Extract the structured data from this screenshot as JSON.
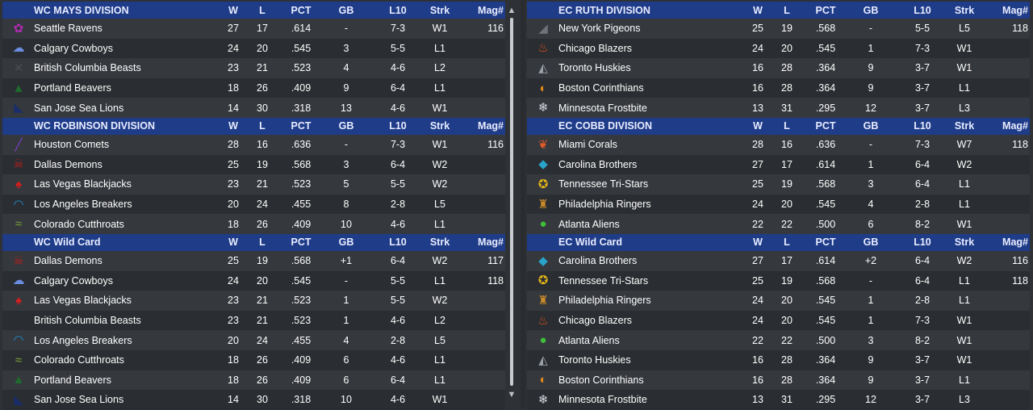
{
  "columns": {
    "w": "W",
    "l": "L",
    "pct": "PCT",
    "gb": "GB",
    "l10": "L10",
    "strk": "Strk",
    "mag": "Mag#"
  },
  "left": [
    {
      "title": "WC MAYS DIVISION",
      "rows": [
        {
          "logo": "raven-logo",
          "color": "#b12bb5",
          "glyph": "✿",
          "team": "Seattle Ravens",
          "w": "27",
          "l": "17",
          "pct": ".614",
          "gb": "-",
          "l10": "7-3",
          "strk": "W1",
          "mag": "116"
        },
        {
          "logo": "cowboy-hat-logo",
          "color": "#6b8de0",
          "glyph": "☁",
          "team": "Calgary Cowboys",
          "w": "24",
          "l": "20",
          "pct": ".545",
          "gb": "3",
          "l10": "5-5",
          "strk": "L1",
          "mag": ""
        },
        {
          "logo": "beast-logo",
          "color": "#4a4d52",
          "glyph": "✕",
          "team": "British Columbia Beasts",
          "w": "23",
          "l": "21",
          "pct": ".523",
          "gb": "4",
          "l10": "4-6",
          "strk": "L2",
          "mag": ""
        },
        {
          "logo": "beaver-logo",
          "color": "#1f6b2e",
          "glyph": "▲",
          "team": "Portland Beavers",
          "w": "18",
          "l": "26",
          "pct": ".409",
          "gb": "9",
          "l10": "6-4",
          "strk": "L1",
          "mag": ""
        },
        {
          "logo": "sea-lion-logo",
          "color": "#1a2d6b",
          "glyph": "◣",
          "team": "San Jose Sea Lions",
          "w": "14",
          "l": "30",
          "pct": ".318",
          "gb": "13",
          "l10": "4-6",
          "strk": "W1",
          "mag": ""
        }
      ]
    },
    {
      "title": "WC ROBINSON DIVISION",
      "rows": [
        {
          "logo": "comet-logo",
          "color": "#7a3ec4",
          "glyph": "╱",
          "team": "Houston Comets",
          "w": "28",
          "l": "16",
          "pct": ".636",
          "gb": "-",
          "l10": "7-3",
          "strk": "W1",
          "mag": "116"
        },
        {
          "logo": "demon-logo",
          "color": "#b3201c",
          "glyph": "☠",
          "team": "Dallas Demons",
          "w": "25",
          "l": "19",
          "pct": ".568",
          "gb": "3",
          "l10": "6-4",
          "strk": "W2",
          "mag": ""
        },
        {
          "logo": "blackjack-logo",
          "color": "#d81e1e",
          "glyph": "♠",
          "team": "Las Vegas Blackjacks",
          "w": "23",
          "l": "21",
          "pct": ".523",
          "gb": "5",
          "l10": "5-5",
          "strk": "W2",
          "mag": ""
        },
        {
          "logo": "wave-logo",
          "color": "#1f8fd6",
          "glyph": "◠",
          "team": "Los Angeles Breakers",
          "w": "20",
          "l": "24",
          "pct": ".455",
          "gb": "8",
          "l10": "2-8",
          "strk": "L5",
          "mag": ""
        },
        {
          "logo": "fish-logo",
          "color": "#7aa33a",
          "glyph": "≈",
          "team": "Colorado Cutthroats",
          "w": "18",
          "l": "26",
          "pct": ".409",
          "gb": "10",
          "l10": "4-6",
          "strk": "L1",
          "mag": ""
        }
      ]
    },
    {
      "title": "WC  Wild Card",
      "rows": [
        {
          "logo": "demon-logo",
          "color": "#b3201c",
          "glyph": "☠",
          "team": "Dallas Demons",
          "w": "25",
          "l": "19",
          "pct": ".568",
          "gb": "+1",
          "l10": "6-4",
          "strk": "W2",
          "mag": "117"
        },
        {
          "logo": "cowboy-hat-logo",
          "color": "#6b8de0",
          "glyph": "☁",
          "team": "Calgary Cowboys",
          "w": "24",
          "l": "20",
          "pct": ".545",
          "gb": "-",
          "l10": "5-5",
          "strk": "L1",
          "mag": "118"
        },
        {
          "logo": "blackjack-logo",
          "color": "#d81e1e",
          "glyph": "♠",
          "team": "Las Vegas Blackjacks",
          "w": "23",
          "l": "21",
          "pct": ".523",
          "gb": "1",
          "l10": "5-5",
          "strk": "W2",
          "mag": ""
        },
        {
          "logo": "beast-logo",
          "color": "#4a4d52",
          "glyph": "",
          "team": "British Columbia Beasts",
          "w": "23",
          "l": "21",
          "pct": ".523",
          "gb": "1",
          "l10": "4-6",
          "strk": "L2",
          "mag": ""
        },
        {
          "logo": "wave-logo",
          "color": "#1f8fd6",
          "glyph": "◠",
          "team": "Los Angeles Breakers",
          "w": "20",
          "l": "24",
          "pct": ".455",
          "gb": "4",
          "l10": "2-8",
          "strk": "L5",
          "mag": ""
        },
        {
          "logo": "fish-logo",
          "color": "#7aa33a",
          "glyph": "≈",
          "team": "Colorado Cutthroats",
          "w": "18",
          "l": "26",
          "pct": ".409",
          "gb": "6",
          "l10": "4-6",
          "strk": "L1",
          "mag": ""
        },
        {
          "logo": "beaver-logo",
          "color": "#1f6b2e",
          "glyph": "▲",
          "team": "Portland Beavers",
          "w": "18",
          "l": "26",
          "pct": ".409",
          "gb": "6",
          "l10": "6-4",
          "strk": "L1",
          "mag": ""
        },
        {
          "logo": "sea-lion-logo",
          "color": "#1a2d6b",
          "glyph": "◣",
          "team": "San Jose Sea Lions",
          "w": "14",
          "l": "30",
          "pct": ".318",
          "gb": "10",
          "l10": "4-6",
          "strk": "W1",
          "mag": ""
        }
      ]
    }
  ],
  "right": [
    {
      "title": "EC RUTH DIVISION",
      "rows": [
        {
          "logo": "pigeon-logo",
          "color": "#6f7378",
          "glyph": "◢",
          "team": "New York Pigeons",
          "w": "25",
          "l": "19",
          "pct": ".568",
          "gb": "-",
          "l10": "5-5",
          "strk": "L5",
          "mag": "118"
        },
        {
          "logo": "flame-logo",
          "color": "#e8531c",
          "glyph": "♨",
          "team": "Chicago Blazers",
          "w": "24",
          "l": "20",
          "pct": ".545",
          "gb": "1",
          "l10": "7-3",
          "strk": "W1",
          "mag": ""
        },
        {
          "logo": "husky-logo",
          "color": "#9aa0a6",
          "glyph": "◭",
          "team": "Toronto Huskies",
          "w": "16",
          "l": "28",
          "pct": ".364",
          "gb": "9",
          "l10": "3-7",
          "strk": "W1",
          "mag": ""
        },
        {
          "logo": "spartan-helmet-logo",
          "color": "#e08a1a",
          "glyph": "◐",
          "team": "Boston Corinthians",
          "w": "16",
          "l": "28",
          "pct": ".364",
          "gb": "9",
          "l10": "3-7",
          "strk": "L1",
          "mag": ""
        },
        {
          "logo": "snowflake-logo",
          "color": "#d8dde3",
          "glyph": "❄",
          "team": "Minnesota Frostbite",
          "w": "13",
          "l": "31",
          "pct": ".295",
          "gb": "12",
          "l10": "3-7",
          "strk": "L3",
          "mag": ""
        }
      ]
    },
    {
      "title": "EC COBB DIVISION",
      "rows": [
        {
          "logo": "coral-logo",
          "color": "#e05a2a",
          "glyph": "❦",
          "team": "Miami Corals",
          "w": "28",
          "l": "16",
          "pct": ".636",
          "gb": "-",
          "l10": "7-3",
          "strk": "W7",
          "mag": "118"
        },
        {
          "logo": "diamond-logo",
          "color": "#2aa3c9",
          "glyph": "◆",
          "team": "Carolina Brothers",
          "w": "27",
          "l": "17",
          "pct": ".614",
          "gb": "1",
          "l10": "6-4",
          "strk": "W2",
          "mag": ""
        },
        {
          "logo": "tri-star-logo",
          "color": "#e0b41a",
          "glyph": "✪",
          "team": "Tennessee Tri-Stars",
          "w": "25",
          "l": "19",
          "pct": ".568",
          "gb": "3",
          "l10": "6-4",
          "strk": "L1",
          "mag": ""
        },
        {
          "logo": "liberty-bell-logo",
          "color": "#c98a2a",
          "glyph": "♜",
          "team": "Philadelphia Ringers",
          "w": "24",
          "l": "20",
          "pct": ".545",
          "gb": "4",
          "l10": "2-8",
          "strk": "L1",
          "mag": ""
        },
        {
          "logo": "alien-logo",
          "color": "#3fbf3a",
          "glyph": "●",
          "team": "Atlanta Aliens",
          "w": "22",
          "l": "22",
          "pct": ".500",
          "gb": "6",
          "l10": "8-2",
          "strk": "W1",
          "mag": ""
        }
      ]
    },
    {
      "title": "EC  Wild Card",
      "rows": [
        {
          "logo": "diamond-logo",
          "color": "#2aa3c9",
          "glyph": "◆",
          "team": "Carolina Brothers",
          "w": "27",
          "l": "17",
          "pct": ".614",
          "gb": "+2",
          "l10": "6-4",
          "strk": "W2",
          "mag": "116"
        },
        {
          "logo": "tri-star-logo",
          "color": "#e0b41a",
          "glyph": "✪",
          "team": "Tennessee Tri-Stars",
          "w": "25",
          "l": "19",
          "pct": ".568",
          "gb": "-",
          "l10": "6-4",
          "strk": "L1",
          "mag": "118"
        },
        {
          "logo": "liberty-bell-logo",
          "color": "#c98a2a",
          "glyph": "♜",
          "team": "Philadelphia Ringers",
          "w": "24",
          "l": "20",
          "pct": ".545",
          "gb": "1",
          "l10": "2-8",
          "strk": "L1",
          "mag": ""
        },
        {
          "logo": "flame-logo",
          "color": "#e8531c",
          "glyph": "♨",
          "team": "Chicago Blazers",
          "w": "24",
          "l": "20",
          "pct": ".545",
          "gb": "1",
          "l10": "7-3",
          "strk": "W1",
          "mag": ""
        },
        {
          "logo": "alien-logo",
          "color": "#3fbf3a",
          "glyph": "●",
          "team": "Atlanta Aliens",
          "w": "22",
          "l": "22",
          "pct": ".500",
          "gb": "3",
          "l10": "8-2",
          "strk": "W1",
          "mag": ""
        },
        {
          "logo": "husky-logo",
          "color": "#9aa0a6",
          "glyph": "◭",
          "team": "Toronto Huskies",
          "w": "16",
          "l": "28",
          "pct": ".364",
          "gb": "9",
          "l10": "3-7",
          "strk": "W1",
          "mag": ""
        },
        {
          "logo": "spartan-helmet-logo",
          "color": "#e08a1a",
          "glyph": "◐",
          "team": "Boston Corinthians",
          "w": "16",
          "l": "28",
          "pct": ".364",
          "gb": "9",
          "l10": "3-7",
          "strk": "L1",
          "mag": ""
        },
        {
          "logo": "snowflake-logo",
          "color": "#d8dde3",
          "glyph": "❄",
          "team": "Minnesota Frostbite",
          "w": "13",
          "l": "31",
          "pct": ".295",
          "gb": "12",
          "l10": "3-7",
          "strk": "L3",
          "mag": ""
        }
      ]
    }
  ]
}
